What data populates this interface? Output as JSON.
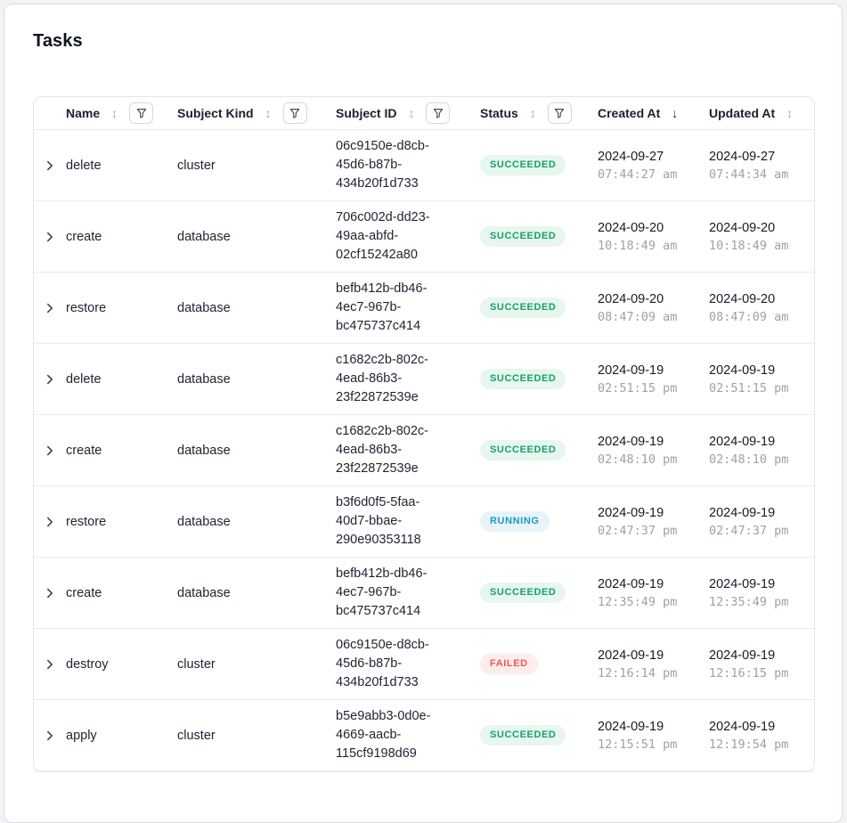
{
  "page": {
    "title": "Tasks"
  },
  "table": {
    "columns": [
      {
        "label": "Name",
        "sort": "both",
        "filter": true
      },
      {
        "label": "Subject Kind",
        "sort": "both",
        "filter": true
      },
      {
        "label": "Subject ID",
        "sort": "both",
        "filter": true
      },
      {
        "label": "Status",
        "sort": "both",
        "filter": true
      },
      {
        "label": "Created At",
        "sort": "desc",
        "filter": false
      },
      {
        "label": "Updated At",
        "sort": "both",
        "filter": false
      }
    ],
    "rows": [
      {
        "name": "delete",
        "subject_kind": "cluster",
        "subject_id": "06c9150e-d8cb-45d6-b87b-434b20f1d733",
        "status": "SUCCEEDED",
        "created_date": "2024-09-27",
        "created_time": "07:44:27 am",
        "updated_date": "2024-09-27",
        "updated_time": "07:44:34 am"
      },
      {
        "name": "create",
        "subject_kind": "database",
        "subject_id": "706c002d-dd23-49aa-abfd-02cf15242a80",
        "status": "SUCCEEDED",
        "created_date": "2024-09-20",
        "created_time": "10:18:49 am",
        "updated_date": "2024-09-20",
        "updated_time": "10:18:49 am"
      },
      {
        "name": "restore",
        "subject_kind": "database",
        "subject_id": "befb412b-db46-4ec7-967b-bc475737c414",
        "status": "SUCCEEDED",
        "created_date": "2024-09-20",
        "created_time": "08:47:09 am",
        "updated_date": "2024-09-20",
        "updated_time": "08:47:09 am"
      },
      {
        "name": "delete",
        "subject_kind": "database",
        "subject_id": "c1682c2b-802c-4ead-86b3-23f22872539e",
        "status": "SUCCEEDED",
        "created_date": "2024-09-19",
        "created_time": "02:51:15 pm",
        "updated_date": "2024-09-19",
        "updated_time": "02:51:15 pm"
      },
      {
        "name": "create",
        "subject_kind": "database",
        "subject_id": "c1682c2b-802c-4ead-86b3-23f22872539e",
        "status": "SUCCEEDED",
        "created_date": "2024-09-19",
        "created_time": "02:48:10 pm",
        "updated_date": "2024-09-19",
        "updated_time": "02:48:10 pm"
      },
      {
        "name": "restore",
        "subject_kind": "database",
        "subject_id": "b3f6d0f5-5faa-40d7-bbae-290e90353118",
        "status": "RUNNING",
        "created_date": "2024-09-19",
        "created_time": "02:47:37 pm",
        "updated_date": "2024-09-19",
        "updated_time": "02:47:37 pm"
      },
      {
        "name": "create",
        "subject_kind": "database",
        "subject_id": "befb412b-db46-4ec7-967b-bc475737c414",
        "status": "SUCCEEDED",
        "created_date": "2024-09-19",
        "created_time": "12:35:49 pm",
        "updated_date": "2024-09-19",
        "updated_time": "12:35:49 pm"
      },
      {
        "name": "destroy",
        "subject_kind": "cluster",
        "subject_id": "06c9150e-d8cb-45d6-b87b-434b20f1d733",
        "status": "FAILED",
        "created_date": "2024-09-19",
        "created_time": "12:16:14 pm",
        "updated_date": "2024-09-19",
        "updated_time": "12:16:15 pm"
      },
      {
        "name": "apply",
        "subject_kind": "cluster",
        "subject_id": "b5e9abb3-0d0e-4669-aacb-115cf9198d69",
        "status": "SUCCEEDED",
        "created_date": "2024-09-19",
        "created_time": "12:15:51 pm",
        "updated_date": "2024-09-19",
        "updated_time": "12:19:54 pm"
      }
    ],
    "status_colors": {
      "SUCCEEDED": {
        "bg": "#e7f6ee",
        "fg": "#16a169"
      },
      "RUNNING": {
        "bg": "#e9f3f9",
        "fg": "#1d9cc0"
      },
      "FAILED": {
        "bg": "#fdeceb",
        "fg": "#f25a50"
      }
    },
    "icons": {
      "sort_both": "up-down-arrow",
      "sort_desc": "down-arrow",
      "filter": "funnel",
      "expand": "chevron-right"
    }
  }
}
